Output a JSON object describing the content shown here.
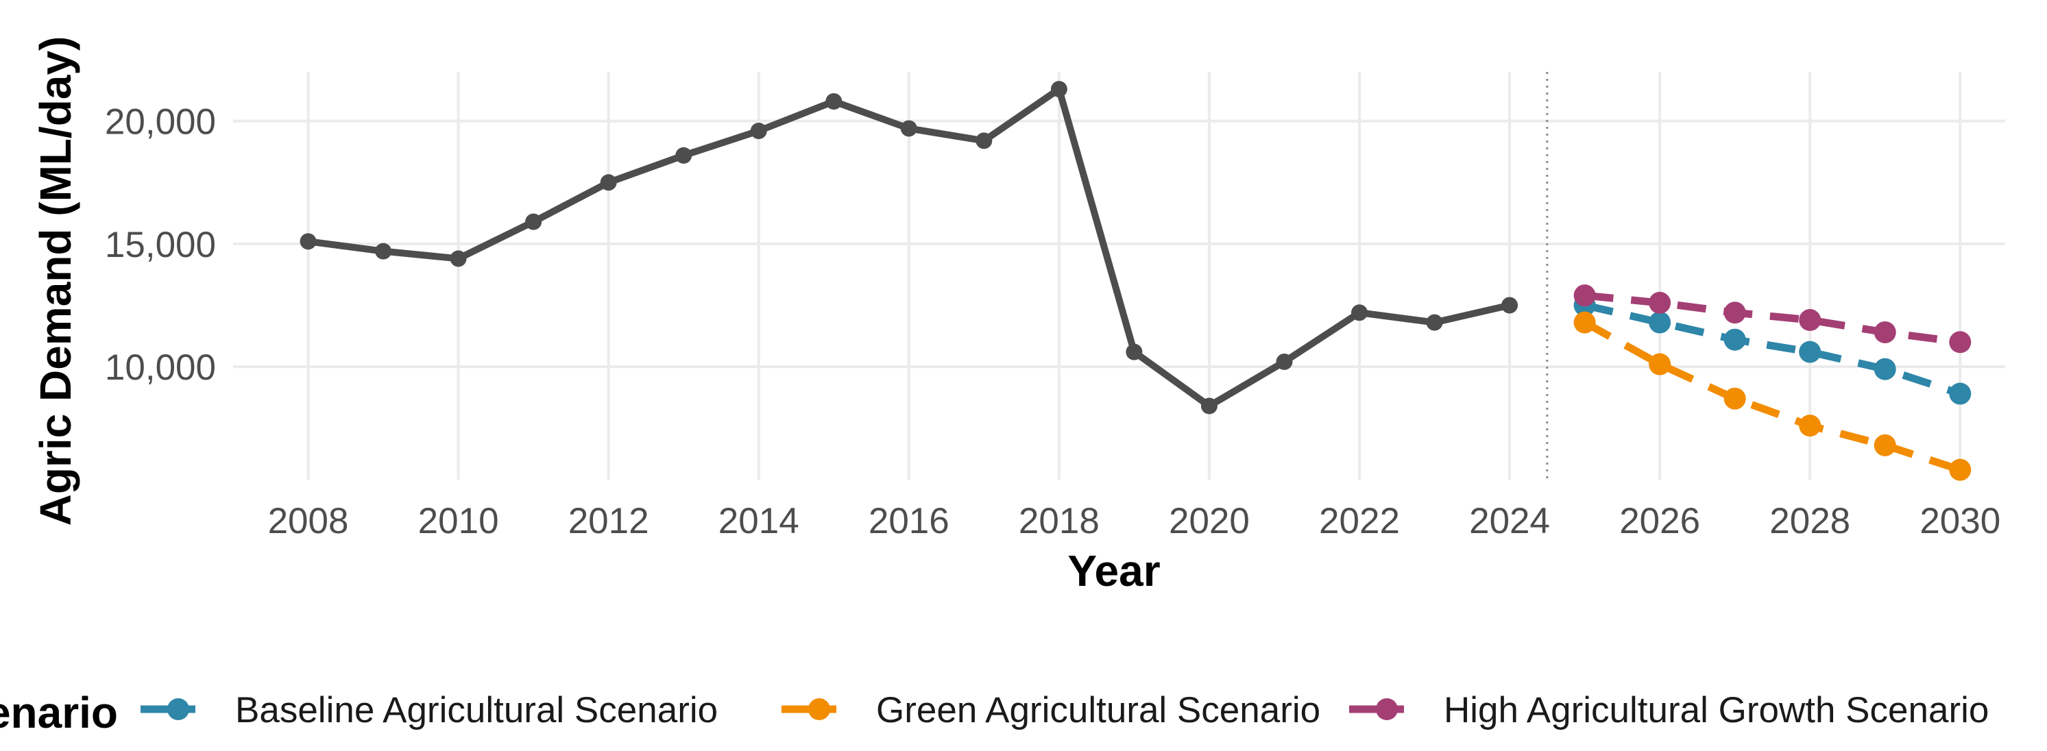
{
  "chart_data": {
    "type": "line",
    "xlabel": "Year",
    "ylabel": "Agric Demand (ML/day)",
    "xlim": [
      2007.0,
      2030.6
    ],
    "ylim": [
      5400,
      22000
    ],
    "x_ticks": [
      2008,
      2010,
      2012,
      2014,
      2016,
      2018,
      2020,
      2022,
      2024,
      2026,
      2028,
      2030
    ],
    "x_tick_labels": [
      "2008",
      "2010",
      "2012",
      "2014",
      "2016",
      "2018",
      "2020",
      "2022",
      "2024",
      "2026",
      "2028",
      "2030"
    ],
    "y_ticks": [
      10000,
      15000,
      20000
    ],
    "y_tick_labels": [
      "10,000",
      "15,000",
      "20,000"
    ],
    "grid": true,
    "divider_x": 2024.5,
    "historical": {
      "color": "#4d4d4d",
      "x": [
        2008,
        2009,
        2010,
        2011,
        2012,
        2013,
        2014,
        2015,
        2016,
        2017,
        2018,
        2019,
        2020,
        2021,
        2022,
        2023,
        2024
      ],
      "values": [
        15100,
        14700,
        14400,
        15900,
        17500,
        18600,
        19600,
        20800,
        19700,
        19200,
        21300,
        10600,
        8400,
        10200,
        12200,
        11800,
        12500
      ]
    },
    "legend": {
      "title": "Scenario",
      "position": "bottom"
    },
    "series": [
      {
        "name": "Baseline Agricultural Scenario",
        "color": "#2e86a8",
        "x": [
          2025,
          2026,
          2027,
          2028,
          2029,
          2030
        ],
        "values": [
          12500,
          11800,
          11100,
          10600,
          9900,
          8900
        ]
      },
      {
        "name": "Green Agricultural Scenario",
        "color": "#f28c00",
        "x": [
          2025,
          2026,
          2027,
          2028,
          2029,
          2030
        ],
        "values": [
          11800,
          10100,
          8700,
          7600,
          6800,
          5800
        ]
      },
      {
        "name": "High Agricultural Growth Scenario",
        "color": "#a43f74",
        "x": [
          2025,
          2026,
          2027,
          2028,
          2029,
          2030
        ],
        "values": [
          12900,
          12600,
          12200,
          11900,
          11400,
          11000
        ]
      }
    ]
  }
}
